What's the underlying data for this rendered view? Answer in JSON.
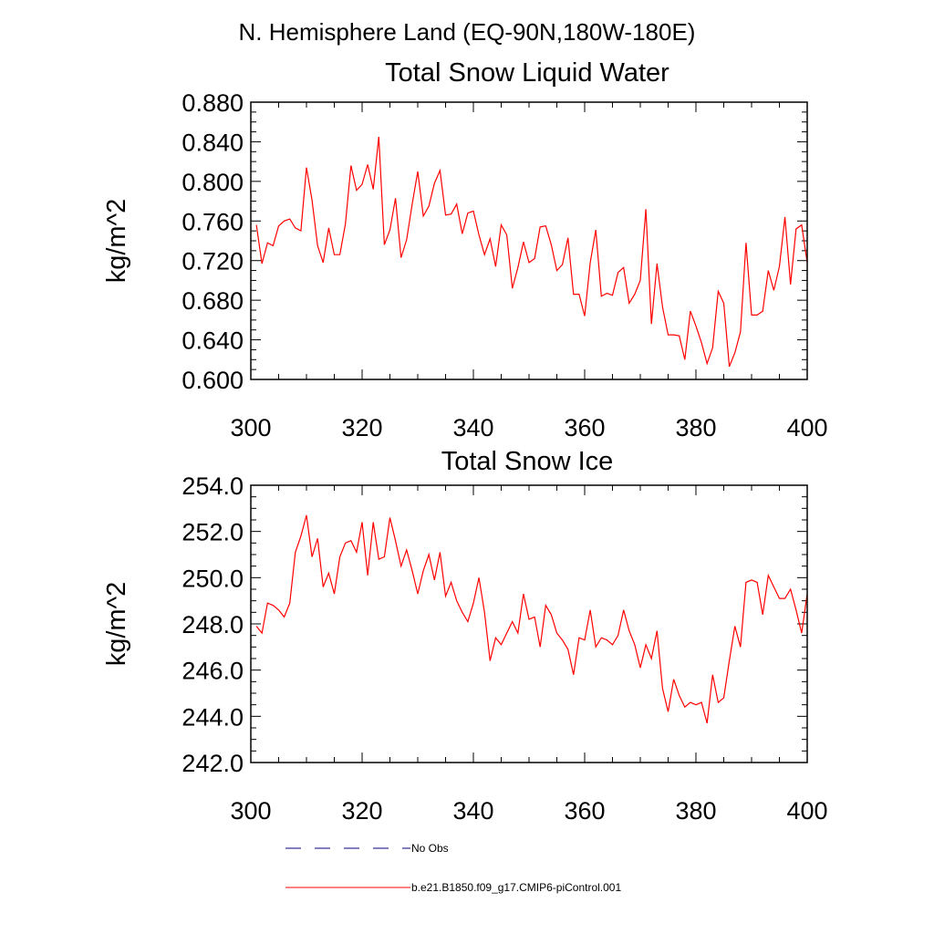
{
  "header": {
    "title": "N. Hemisphere Land (EQ-90N,180W-180E)"
  },
  "legend": {
    "entries": [
      {
        "label": "No Obs",
        "color": "#000080",
        "dash": "dashed"
      },
      {
        "label": "b.e21.B1850.f09_g17.CMIP6-piControl.001",
        "color": "#ff0000",
        "dash": "solid"
      }
    ]
  },
  "chart_data": [
    {
      "type": "line",
      "title": "Total Snow Liquid Water",
      "xlabel": "",
      "ylabel": "kg/m^2",
      "xlim": [
        300,
        400
      ],
      "ylim": [
        0.6,
        0.88
      ],
      "xticks": [
        300,
        320,
        340,
        360,
        380,
        400
      ],
      "xtick_labels": [
        "300",
        "320",
        "340",
        "360",
        "380",
        "400"
      ],
      "yticks": [
        0.6,
        0.64,
        0.68,
        0.72,
        0.76,
        0.8,
        0.84,
        0.88
      ],
      "ytick_labels": [
        "0.600",
        "0.640",
        "0.680",
        "0.720",
        "0.760",
        "0.800",
        "0.840",
        "0.880"
      ],
      "series": [
        {
          "name": "b.e21.B1850.f09_g17.CMIP6-piControl.001",
          "color": "#ff0000",
          "x": [
            301,
            302,
            303,
            304,
            305,
            306,
            307,
            308,
            309,
            310,
            311,
            312,
            313,
            314,
            315,
            316,
            317,
            318,
            319,
            320,
            321,
            322,
            323,
            324,
            325,
            326,
            327,
            328,
            329,
            330,
            331,
            332,
            333,
            334,
            335,
            336,
            337,
            338,
            339,
            340,
            341,
            342,
            343,
            344,
            345,
            346,
            347,
            348,
            349,
            350,
            351,
            352,
            353,
            354,
            355,
            356,
            357,
            358,
            359,
            360,
            361,
            362,
            363,
            364,
            365,
            366,
            367,
            368,
            369,
            370,
            371,
            372,
            373,
            374,
            375,
            376,
            377,
            378,
            379,
            380,
            381,
            382,
            383,
            384,
            385,
            386,
            387,
            388,
            389,
            390,
            391,
            392,
            393,
            394,
            395,
            396,
            397,
            398,
            399,
            400
          ],
          "values": [
            0.756,
            0.717,
            0.738,
            0.735,
            0.755,
            0.76,
            0.762,
            0.753,
            0.75,
            0.814,
            0.781,
            0.735,
            0.718,
            0.753,
            0.726,
            0.726,
            0.757,
            0.816,
            0.791,
            0.797,
            0.817,
            0.792,
            0.845,
            0.736,
            0.751,
            0.783,
            0.723,
            0.741,
            0.777,
            0.81,
            0.765,
            0.775,
            0.798,
            0.811,
            0.766,
            0.767,
            0.777,
            0.747,
            0.768,
            0.77,
            0.746,
            0.726,
            0.742,
            0.714,
            0.756,
            0.746,
            0.692,
            0.713,
            0.739,
            0.718,
            0.722,
            0.754,
            0.755,
            0.736,
            0.71,
            0.716,
            0.743,
            0.686,
            0.686,
            0.664,
            0.718,
            0.751,
            0.684,
            0.687,
            0.685,
            0.708,
            0.713,
            0.677,
            0.686,
            0.7,
            0.772,
            0.656,
            0.717,
            0.673,
            0.645,
            0.645,
            0.644,
            0.62,
            0.669,
            0.654,
            0.637,
            0.616,
            0.632,
            0.689,
            0.677,
            0.613,
            0.627,
            0.648,
            0.738,
            0.665,
            0.665,
            0.669,
            0.71,
            0.69,
            0.714,
            0.764,
            0.696,
            0.752,
            0.756,
            0.718
          ]
        }
      ]
    },
    {
      "type": "line",
      "title": "Total Snow Ice",
      "xlabel": "",
      "ylabel": "kg/m^2",
      "xlim": [
        300,
        400
      ],
      "ylim": [
        242.0,
        254.0
      ],
      "xticks": [
        300,
        320,
        340,
        360,
        380,
        400
      ],
      "xtick_labels": [
        "300",
        "320",
        "340",
        "360",
        "380",
        "400"
      ],
      "yticks": [
        242.0,
        244.0,
        246.0,
        248.0,
        250.0,
        252.0,
        254.0
      ],
      "ytick_labels": [
        "242.0",
        "244.0",
        "246.0",
        "248.0",
        "250.0",
        "252.0",
        "254.0"
      ],
      "series": [
        {
          "name": "b.e21.B1850.f09_g17.CMIP6-piControl.001",
          "color": "#ff0000",
          "x": [
            301,
            302,
            303,
            304,
            305,
            306,
            307,
            308,
            309,
            310,
            311,
            312,
            313,
            314,
            315,
            316,
            317,
            318,
            319,
            320,
            321,
            322,
            323,
            324,
            325,
            326,
            327,
            328,
            329,
            330,
            331,
            332,
            333,
            334,
            335,
            336,
            337,
            338,
            339,
            340,
            341,
            342,
            343,
            344,
            345,
            346,
            347,
            348,
            349,
            350,
            351,
            352,
            353,
            354,
            355,
            356,
            357,
            358,
            359,
            360,
            361,
            362,
            363,
            364,
            365,
            366,
            367,
            368,
            369,
            370,
            371,
            372,
            373,
            374,
            375,
            376,
            377,
            378,
            379,
            380,
            381,
            382,
            383,
            384,
            385,
            386,
            387,
            388,
            389,
            390,
            391,
            392,
            393,
            394,
            395,
            396,
            397,
            398,
            399,
            400
          ],
          "values": [
            247.9,
            247.6,
            248.9,
            248.8,
            248.6,
            248.3,
            248.9,
            251.1,
            251.8,
            252.7,
            250.9,
            251.7,
            249.6,
            250.2,
            249.3,
            250.9,
            251.5,
            251.6,
            251.1,
            252.4,
            250.1,
            252.4,
            250.8,
            250.9,
            252.6,
            251.6,
            250.5,
            251.2,
            250.3,
            249.3,
            250.3,
            251.0,
            249.9,
            251.1,
            249.2,
            249.8,
            249.0,
            248.5,
            248.1,
            248.9,
            250.0,
            248.5,
            246.4,
            247.4,
            247.1,
            247.6,
            248.1,
            247.6,
            249.3,
            248.2,
            248.3,
            247.0,
            248.8,
            248.4,
            247.6,
            247.3,
            246.9,
            245.8,
            247.4,
            247.3,
            248.6,
            247.0,
            247.4,
            247.3,
            247.1,
            247.5,
            248.6,
            247.7,
            247.1,
            246.1,
            247.1,
            246.5,
            247.7,
            245.2,
            244.2,
            245.6,
            244.9,
            244.4,
            244.6,
            244.5,
            244.6,
            243.7,
            245.8,
            244.6,
            244.8,
            246.4,
            247.9,
            247.0,
            249.8,
            249.9,
            249.8,
            248.4,
            250.1,
            249.6,
            249.1,
            249.1,
            249.5,
            248.6,
            247.6,
            249.3
          ]
        }
      ]
    }
  ]
}
